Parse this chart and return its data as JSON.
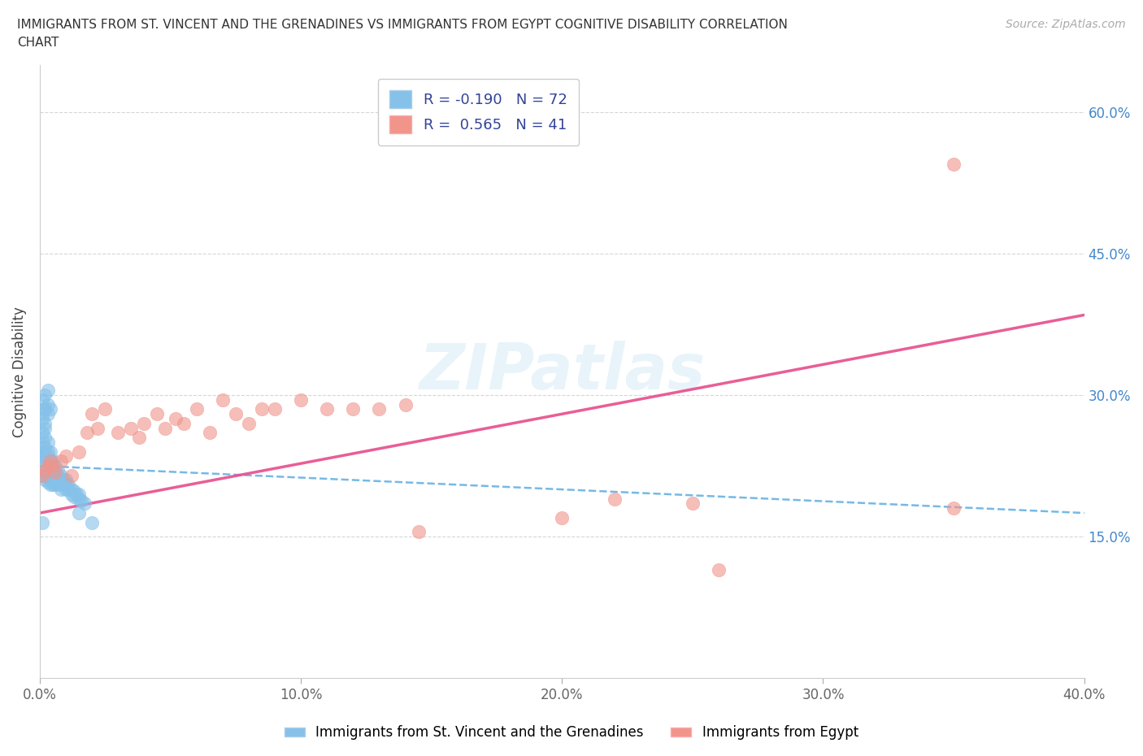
{
  "title_line1": "IMMIGRANTS FROM ST. VINCENT AND THE GRENADINES VS IMMIGRANTS FROM EGYPT COGNITIVE DISABILITY CORRELATION",
  "title_line2": "CHART",
  "source": "Source: ZipAtlas.com",
  "ylabel": "Cognitive Disability",
  "xlim": [
    0.0,
    0.4
  ],
  "ylim": [
    0.0,
    0.65
  ],
  "watermark": "ZIPatlas",
  "legend1_label": "R = -0.190   N = 72",
  "legend2_label": "R =  0.565   N = 41",
  "legend_series1": "Immigrants from St. Vincent and the Grenadines",
  "legend_series2": "Immigrants from Egypt",
  "color_blue": "#85c1e9",
  "color_pink": "#f1948a",
  "color_blue_line": "#5dade2",
  "color_pink_line": "#e74c8b",
  "blue_x": [
    0.001,
    0.001,
    0.001,
    0.001,
    0.001,
    0.001,
    0.002,
    0.002,
    0.002,
    0.002,
    0.002,
    0.002,
    0.002,
    0.002,
    0.003,
    0.003,
    0.003,
    0.003,
    0.003,
    0.003,
    0.003,
    0.004,
    0.004,
    0.004,
    0.004,
    0.004,
    0.004,
    0.005,
    0.005,
    0.005,
    0.005,
    0.005,
    0.006,
    0.006,
    0.006,
    0.006,
    0.007,
    0.007,
    0.007,
    0.008,
    0.008,
    0.008,
    0.009,
    0.009,
    0.01,
    0.01,
    0.01,
    0.011,
    0.011,
    0.012,
    0.012,
    0.013,
    0.013,
    0.014,
    0.015,
    0.015,
    0.016,
    0.017,
    0.002,
    0.003,
    0.001,
    0.001,
    0.002,
    0.001,
    0.002,
    0.003,
    0.004,
    0.002,
    0.003,
    0.001,
    0.015,
    0.02
  ],
  "blue_y": [
    0.24,
    0.25,
    0.26,
    0.225,
    0.235,
    0.215,
    0.245,
    0.255,
    0.265,
    0.235,
    0.22,
    0.23,
    0.24,
    0.21,
    0.24,
    0.25,
    0.225,
    0.235,
    0.22,
    0.215,
    0.208,
    0.24,
    0.23,
    0.22,
    0.215,
    0.21,
    0.205,
    0.23,
    0.225,
    0.218,
    0.21,
    0.205,
    0.225,
    0.218,
    0.212,
    0.205,
    0.22,
    0.215,
    0.205,
    0.215,
    0.21,
    0.2,
    0.21,
    0.205,
    0.21,
    0.205,
    0.2,
    0.205,
    0.2,
    0.2,
    0.195,
    0.198,
    0.192,
    0.195,
    0.195,
    0.19,
    0.188,
    0.185,
    0.27,
    0.28,
    0.28,
    0.275,
    0.285,
    0.295,
    0.285,
    0.29,
    0.285,
    0.3,
    0.305,
    0.165,
    0.175,
    0.165
  ],
  "pink_x": [
    0.001,
    0.002,
    0.003,
    0.004,
    0.005,
    0.006,
    0.008,
    0.01,
    0.012,
    0.015,
    0.018,
    0.02,
    0.022,
    0.025,
    0.03,
    0.035,
    0.038,
    0.04,
    0.045,
    0.048,
    0.052,
    0.055,
    0.06,
    0.065,
    0.07,
    0.075,
    0.08,
    0.085,
    0.09,
    0.1,
    0.11,
    0.12,
    0.13,
    0.14,
    0.145,
    0.2,
    0.22,
    0.25,
    0.26,
    0.35,
    0.35
  ],
  "pink_y": [
    0.215,
    0.22,
    0.225,
    0.23,
    0.225,
    0.218,
    0.23,
    0.235,
    0.215,
    0.24,
    0.26,
    0.28,
    0.265,
    0.285,
    0.26,
    0.265,
    0.255,
    0.27,
    0.28,
    0.265,
    0.275,
    0.27,
    0.285,
    0.26,
    0.295,
    0.28,
    0.27,
    0.285,
    0.285,
    0.295,
    0.285,
    0.285,
    0.285,
    0.29,
    0.155,
    0.17,
    0.19,
    0.185,
    0.115,
    0.18,
    0.545
  ],
  "pink_line_x": [
    0.0,
    0.4
  ],
  "pink_line_y": [
    0.175,
    0.385
  ],
  "blue_line_x": [
    0.0,
    0.4
  ],
  "blue_line_y": [
    0.225,
    0.175
  ]
}
